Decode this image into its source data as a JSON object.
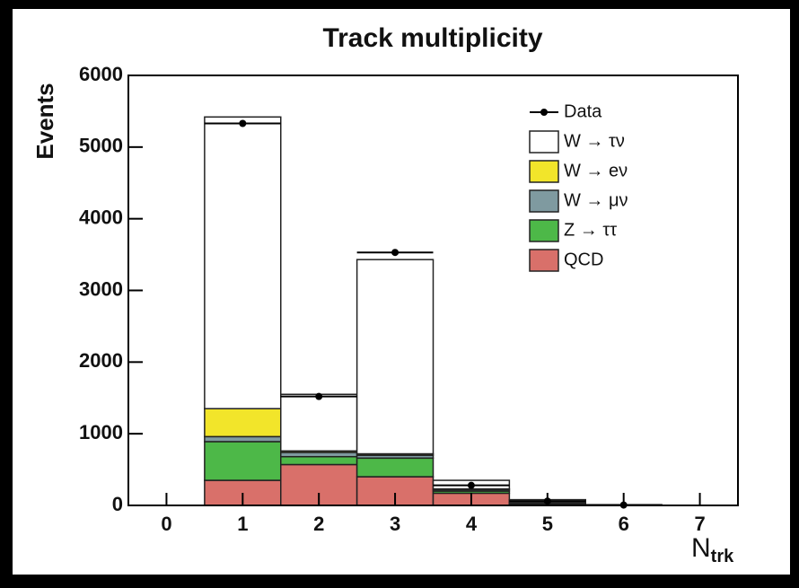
{
  "chart_data": {
    "type": "stacked-histogram",
    "title": "Track multiplicity",
    "xlabel": "N",
    "xlabel_sub": "trk",
    "ylabel": "Events",
    "x": [
      0,
      1,
      2,
      3,
      4,
      5,
      6,
      7
    ],
    "xlim": [
      -0.5,
      7.5
    ],
    "xticks": [
      0,
      1,
      2,
      3,
      4,
      5,
      6,
      7
    ],
    "ylim": [
      0,
      6000
    ],
    "yticks": [
      0,
      1000,
      2000,
      3000,
      4000,
      5000,
      6000
    ],
    "data": {
      "name": "Data",
      "color": "#000000",
      "values": [
        null,
        5330,
        1520,
        3530,
        280,
        60,
        5,
        null
      ]
    },
    "series": [
      {
        "name": "W → τν",
        "color": "#ffffff",
        "values": [
          0,
          4070,
          790,
          2710,
          120,
          40,
          4,
          0
        ]
      },
      {
        "name": "W → eν",
        "color": "#f2e52a",
        "values": [
          0,
          390,
          20,
          20,
          10,
          5,
          1,
          0
        ]
      },
      {
        "name": "W → μν",
        "color": "#7f9aa0",
        "values": [
          0,
          70,
          60,
          40,
          20,
          5,
          1,
          0
        ]
      },
      {
        "name": "Z → ττ",
        "color": "#4db848",
        "values": [
          0,
          540,
          110,
          260,
          30,
          10,
          1,
          0
        ]
      },
      {
        "name": "QCD",
        "color": "#d9706a",
        "values": [
          0,
          350,
          570,
          400,
          170,
          20,
          3,
          0
        ]
      }
    ]
  }
}
